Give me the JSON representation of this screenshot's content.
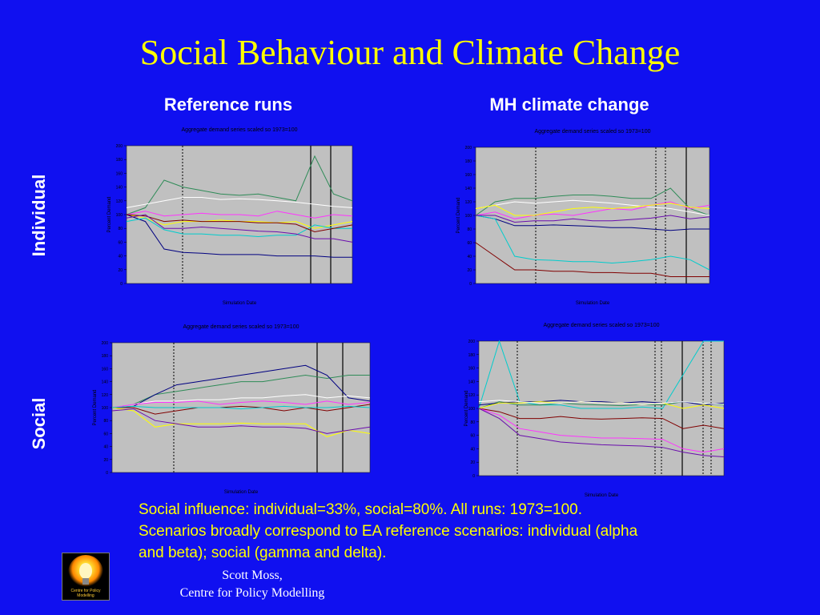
{
  "slide": {
    "title": "Social Behaviour and Climate Change",
    "col_headers": [
      "Reference runs",
      "MH climate change"
    ],
    "row_labels": [
      "Individual",
      "Social"
    ],
    "caption_lines": [
      "Social influence: individual=33%, social=80%. All runs: 1973=100.",
      "Scenarios broadly correspond to EA reference scenarios: individual (alpha",
      "and beta); social (gamma and delta)."
    ],
    "author_lines": [
      "Scott Moss,",
      "Centre for Policy Modelling"
    ],
    "logo_text": "Centre for Policy Modelling",
    "logo_icon": "light-bulb-icon"
  },
  "chart_data": [
    {
      "type": "line",
      "title": "Aggregate demand series scaled so 1973=100",
      "xlabel": "Simulation Date",
      "ylabel": "Percent Demand",
      "ylim": [
        0,
        200
      ],
      "grid": false,
      "series": [
        {
          "color": "#2e8b57",
          "values": [
            100,
            110,
            150,
            140,
            135,
            130,
            128,
            130,
            125,
            120,
            185,
            130,
            120
          ]
        },
        {
          "color": "#ffffff",
          "values": [
            110,
            115,
            120,
            125,
            125,
            122,
            123,
            122,
            120,
            118,
            115,
            112,
            110
          ]
        },
        {
          "color": "#ff33ff",
          "values": [
            100,
            105,
            98,
            100,
            102,
            100,
            100,
            98,
            105,
            100,
            95,
            100,
            98
          ]
        },
        {
          "color": "#ffff00",
          "values": [
            100,
            95,
            85,
            90,
            90,
            92,
            90,
            90,
            88,
            90,
            80,
            85,
            90
          ]
        },
        {
          "color": "#000080",
          "values": [
            100,
            90,
            50,
            45,
            44,
            42,
            42,
            42,
            40,
            40,
            40,
            38,
            38
          ]
        },
        {
          "color": "#00cccc",
          "values": [
            90,
            95,
            78,
            72,
            72,
            70,
            70,
            68,
            70,
            70,
            85,
            80,
            80
          ]
        },
        {
          "color": "#800000",
          "values": [
            100,
            98,
            90,
            92,
            90,
            90,
            90,
            88,
            88,
            86,
            75,
            80,
            85
          ]
        },
        {
          "color": "#6a0dad",
          "values": [
            95,
            100,
            80,
            80,
            82,
            80,
            78,
            76,
            75,
            72,
            65,
            65,
            60
          ]
        }
      ]
    },
    {
      "type": "line",
      "title": "Aggregate demand series scaled so 1973=100",
      "xlabel": "Simulation Date",
      "ylabel": "Percent Demand",
      "ylim": [
        0,
        200
      ],
      "grid": false,
      "series": [
        {
          "color": "#2e8b57",
          "values": [
            100,
            120,
            125,
            125,
            128,
            130,
            130,
            128,
            125,
            125,
            140,
            110,
            100
          ]
        },
        {
          "color": "#ffffff",
          "values": [
            110,
            115,
            120,
            118,
            120,
            122,
            120,
            118,
            115,
            112,
            110,
            105,
            100
          ]
        },
        {
          "color": "#ff33ff",
          "values": [
            100,
            105,
            95,
            100,
            102,
            100,
            105,
            110,
            108,
            115,
            120,
            110,
            115
          ]
        },
        {
          "color": "#ffff00",
          "values": [
            110,
            115,
            100,
            100,
            105,
            110,
            112,
            110,
            112,
            115,
            118,
            112,
            110
          ]
        },
        {
          "color": "#000080",
          "values": [
            100,
            95,
            85,
            85,
            86,
            85,
            84,
            82,
            82,
            80,
            78,
            80,
            80
          ]
        },
        {
          "color": "#00cccc",
          "values": [
            100,
            95,
            40,
            35,
            34,
            32,
            32,
            30,
            32,
            35,
            40,
            35,
            20
          ]
        },
        {
          "color": "#800000",
          "values": [
            60,
            40,
            20,
            20,
            18,
            18,
            16,
            16,
            15,
            15,
            10,
            10,
            10
          ]
        },
        {
          "color": "#6a0dad",
          "values": [
            100,
            100,
            90,
            92,
            92,
            95,
            92,
            92,
            94,
            96,
            100,
            95,
            98
          ]
        }
      ]
    },
    {
      "type": "line",
      "title": "Aggregate demand series scaled so 1973=100",
      "xlabel": "Simulation Date",
      "ylabel": "Percent Demand",
      "ylim": [
        0,
        200
      ],
      "grid": false,
      "series": [
        {
          "color": "#2e8b57",
          "values": [
            100,
            105,
            120,
            125,
            130,
            135,
            140,
            140,
            145,
            150,
            145,
            150,
            150
          ]
        },
        {
          "color": "#000080",
          "values": [
            100,
            102,
            120,
            135,
            140,
            145,
            150,
            155,
            160,
            165,
            150,
            115,
            110
          ]
        },
        {
          "color": "#ffffff",
          "values": [
            100,
            105,
            110,
            110,
            112,
            112,
            115,
            115,
            118,
            120,
            115,
            118,
            115
          ]
        },
        {
          "color": "#ff33ff",
          "values": [
            100,
            105,
            108,
            108,
            110,
            105,
            108,
            110,
            108,
            105,
            110,
            105,
            108
          ]
        },
        {
          "color": "#800000",
          "values": [
            100,
            100,
            90,
            95,
            100,
            100,
            102,
            100,
            95,
            100,
            95,
            100,
            105
          ]
        },
        {
          "color": "#ffff00",
          "values": [
            100,
            95,
            70,
            75,
            75,
            75,
            76,
            75,
            75,
            75,
            55,
            65,
            60
          ]
        },
        {
          "color": "#6a0dad",
          "values": [
            95,
            98,
            80,
            75,
            70,
            70,
            72,
            70,
            70,
            68,
            60,
            65,
            70
          ]
        },
        {
          "color": "#00cccc",
          "values": [
            100,
            102,
            100,
            100,
            100,
            100,
            98,
            100,
            102,
            100,
            100,
            102,
            100
          ]
        }
      ]
    },
    {
      "type": "line",
      "title": "Aggregate demand series scaled so 1973=100",
      "xlabel": "Simulation Date",
      "ylabel": "Percent Demand",
      "ylim": [
        0,
        200
      ],
      "grid": false,
      "series": [
        {
          "color": "#00cccc",
          "values": [
            100,
            200,
            110,
            105,
            105,
            100,
            100,
            100,
            102,
            100,
            150,
            200,
            200
          ]
        },
        {
          "color": "#2e8b57",
          "values": [
            100,
            110,
            105,
            105,
            108,
            106,
            105,
            104,
            106,
            105,
            110,
            108,
            105
          ]
        },
        {
          "color": "#000080",
          "values": [
            105,
            108,
            110,
            110,
            112,
            110,
            110,
            108,
            110,
            108,
            110,
            105,
            108
          ]
        },
        {
          "color": "#ffff00",
          "values": [
            100,
            108,
            108,
            110,
            108,
            110,
            108,
            108,
            106,
            108,
            100,
            105,
            100
          ]
        },
        {
          "color": "#800000",
          "values": [
            100,
            95,
            85,
            85,
            88,
            85,
            84,
            85,
            86,
            85,
            70,
            75,
            70
          ]
        },
        {
          "color": "#ff33ff",
          "values": [
            100,
            90,
            70,
            65,
            60,
            58,
            56,
            56,
            55,
            54,
            40,
            35,
            40
          ]
        },
        {
          "color": "#6a0dad",
          "values": [
            100,
            85,
            60,
            55,
            50,
            48,
            46,
            45,
            44,
            42,
            35,
            30,
            28
          ]
        },
        {
          "color": "#ffffff",
          "values": [
            110,
            112,
            110,
            108,
            108,
            110,
            108,
            108,
            106,
            108,
            110,
            108,
            106
          ]
        }
      ]
    }
  ]
}
